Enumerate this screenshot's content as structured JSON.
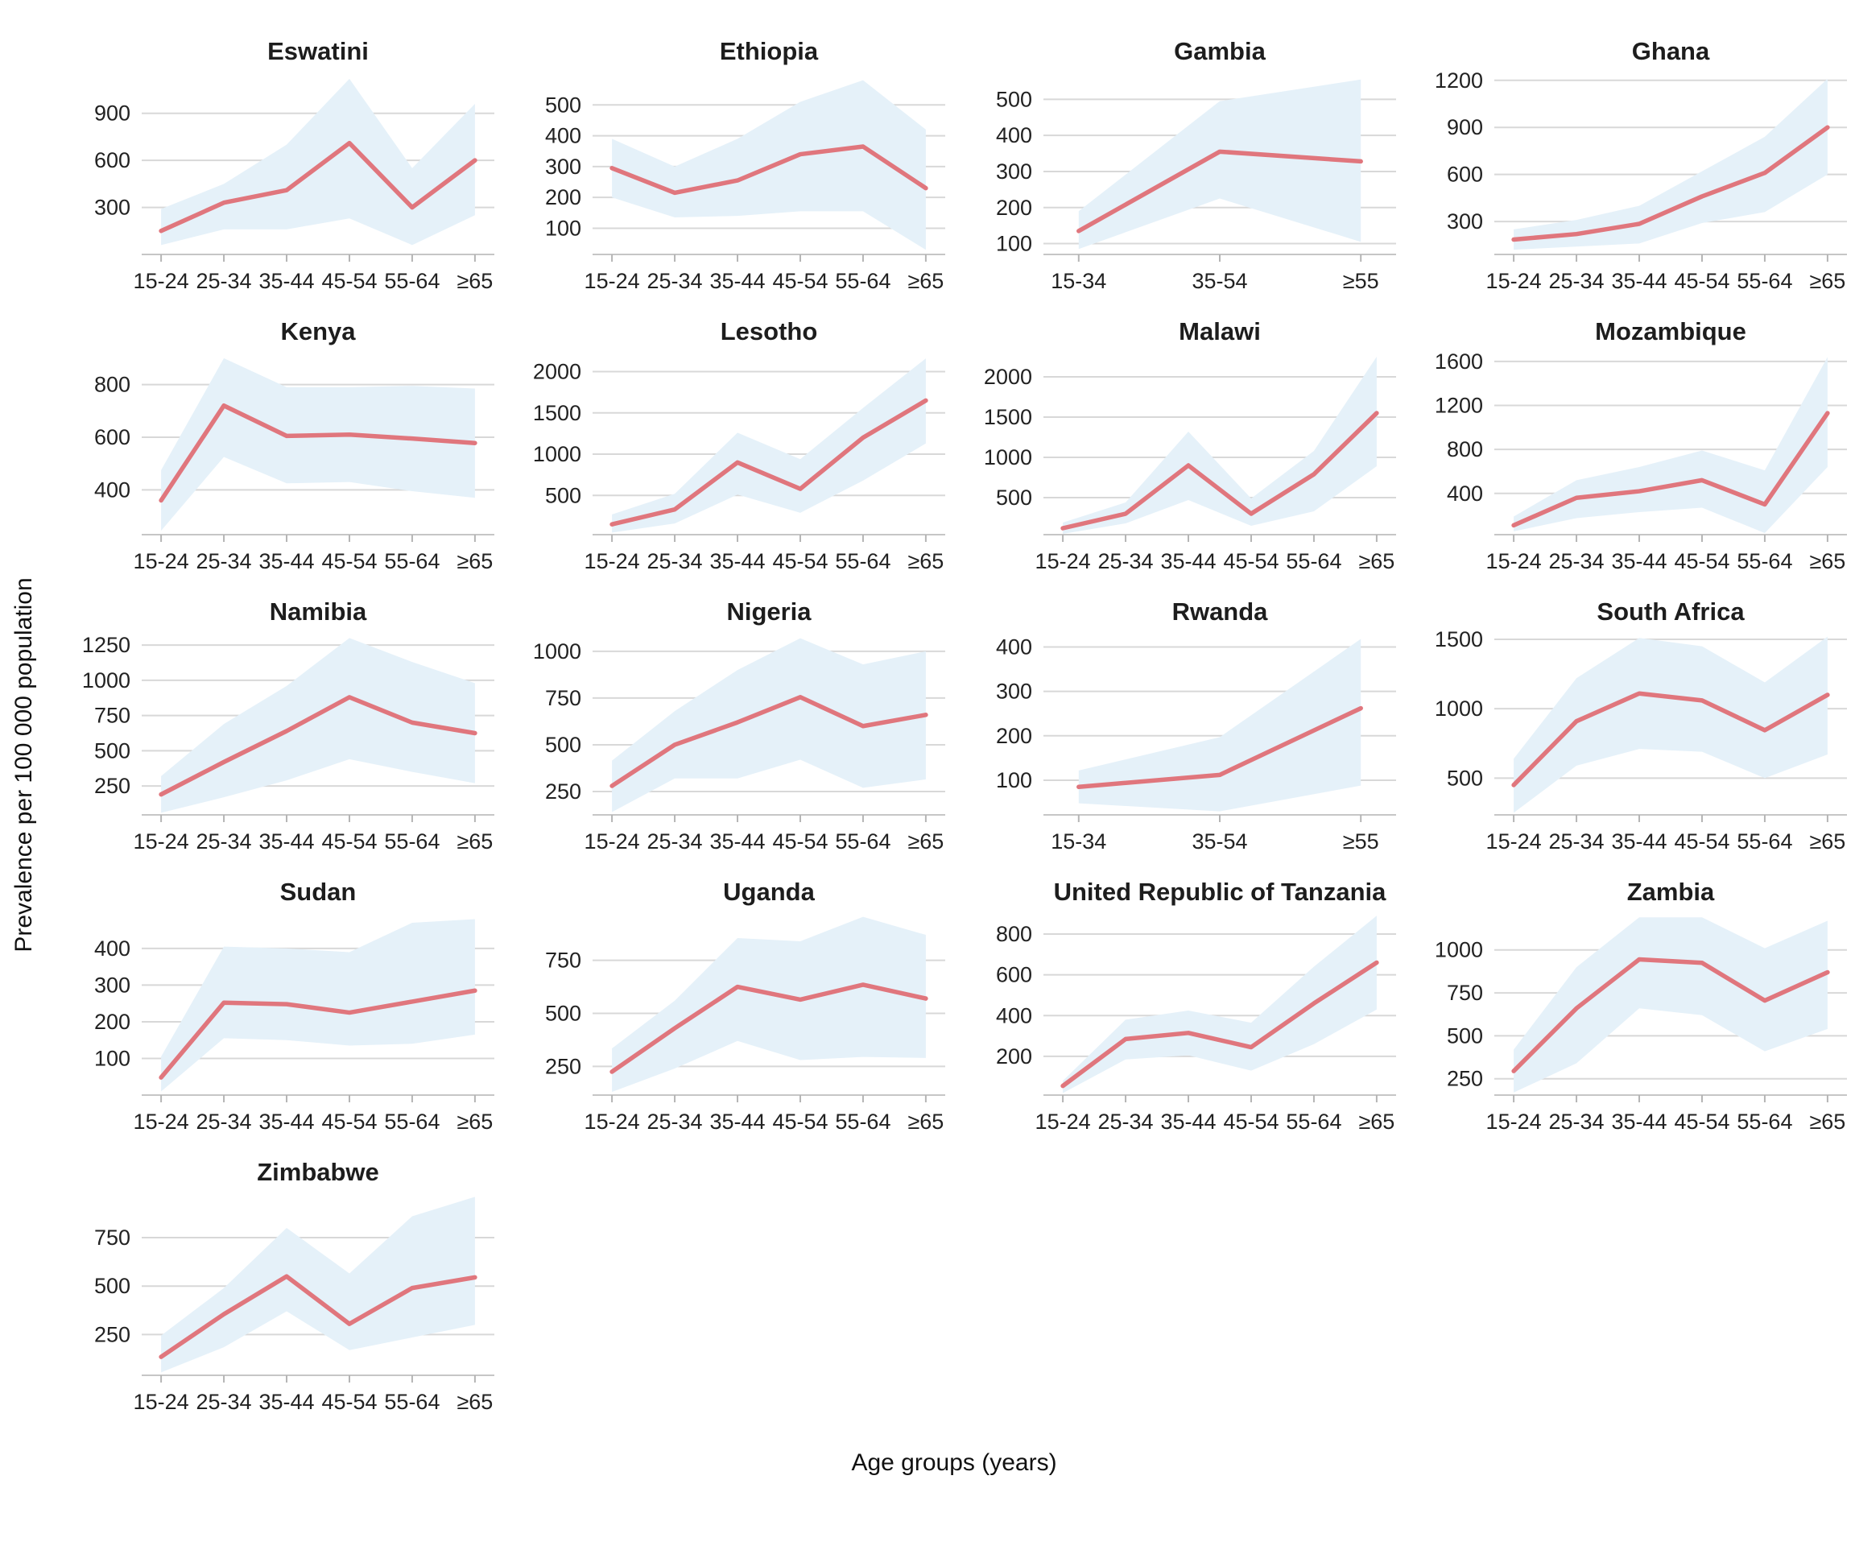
{
  "figure": {
    "ylabel": "Prevalence per 100 000 population",
    "xlabel": "Age groups (years)"
  },
  "style": {
    "line_color": "#e0767d",
    "band_color": "#e5f1f9",
    "grid_color": "#d8d8d8",
    "axis_color": "#c6c6c6",
    "tick_mark_color": "#b5b5b5",
    "text_color": "#222222",
    "title_color": "#1d1d1d"
  },
  "chart_data": [
    {
      "type": "line",
      "title": "Eswatini",
      "categories": [
        "15-24",
        "25-34",
        "35-44",
        "45-54",
        "55-64",
        "≥65"
      ],
      "values": [
        150,
        330,
        410,
        710,
        300,
        600
      ],
      "ci_lower": [
        60,
        160,
        160,
        230,
        60,
        250
      ],
      "ci_upper": [
        290,
        450,
        700,
        1120,
        550,
        960
      ],
      "yticks": [
        300,
        600,
        900
      ],
      "ylim": [
        0,
        1150
      ],
      "xlabel": "Age groups (years)",
      "ylabel": "Prevalence per 100 000 population",
      "grid": true,
      "legend": "none"
    },
    {
      "type": "line",
      "title": "Ethiopia",
      "categories": [
        "15-24",
        "25-34",
        "35-44",
        "45-54",
        "55-64",
        "≥65"
      ],
      "values": [
        295,
        215,
        255,
        340,
        365,
        230
      ],
      "ci_lower": [
        200,
        135,
        140,
        155,
        155,
        30
      ],
      "ci_upper": [
        390,
        300,
        390,
        510,
        580,
        420
      ],
      "yticks": [
        100,
        200,
        300,
        400,
        500
      ],
      "ylim": [
        15,
        600
      ],
      "grid": true,
      "legend": "none"
    },
    {
      "type": "line",
      "title": "Gambia",
      "categories": [
        "15-34",
        "35-54",
        "≥55"
      ],
      "values": [
        135,
        355,
        328
      ],
      "ci_lower": [
        85,
        225,
        105
      ],
      "ci_upper": [
        190,
        495,
        555
      ],
      "yticks": [
        100,
        200,
        300,
        400,
        500
      ],
      "ylim": [
        70,
        570
      ],
      "grid": true,
      "legend": "none"
    },
    {
      "type": "line",
      "title": "Ghana",
      "categories": [
        "15-24",
        "25-34",
        "35-44",
        "45-54",
        "55-64",
        "≥65"
      ],
      "values": [
        185,
        220,
        285,
        460,
        610,
        900
      ],
      "ci_lower": [
        120,
        140,
        160,
        290,
        360,
        600
      ],
      "ci_upper": [
        250,
        310,
        400,
        620,
        840,
        1210
      ],
      "yticks": [
        300,
        600,
        900,
        1200
      ],
      "ylim": [
        90,
        1240
      ],
      "grid": true,
      "legend": "none"
    },
    {
      "type": "line",
      "title": "Kenya",
      "categories": [
        "15-24",
        "25-34",
        "35-44",
        "45-54",
        "55-64",
        "≥65"
      ],
      "values": [
        360,
        720,
        605,
        610,
        595,
        578
      ],
      "ci_lower": [
        245,
        525,
        425,
        430,
        395,
        370
      ],
      "ci_upper": [
        475,
        900,
        790,
        790,
        795,
        785
      ],
      "yticks": [
        400,
        600,
        800
      ],
      "ylim": [
        230,
        915
      ],
      "grid": true,
      "legend": "none"
    },
    {
      "type": "line",
      "title": "Lesotho",
      "categories": [
        "15-24",
        "25-34",
        "35-44",
        "45-54",
        "55-64",
        "≥65"
      ],
      "values": [
        150,
        330,
        900,
        580,
        1200,
        1650
      ],
      "ci_lower": [
        50,
        160,
        510,
        290,
        680,
        1130
      ],
      "ci_upper": [
        270,
        520,
        1260,
        940,
        1560,
        2160
      ],
      "yticks": [
        500,
        1000,
        1500,
        2000
      ],
      "ylim": [
        25,
        2210
      ],
      "grid": true,
      "legend": "none"
    },
    {
      "type": "line",
      "title": "Malawi",
      "categories": [
        "15-24",
        "25-34",
        "35-44",
        "45-54",
        "55-64",
        "≥65"
      ],
      "values": [
        120,
        300,
        900,
        300,
        790,
        1550
      ],
      "ci_lower": [
        50,
        180,
        470,
        150,
        330,
        890
      ],
      "ci_upper": [
        190,
        440,
        1320,
        490,
        1080,
        2250
      ],
      "yticks": [
        500,
        1000,
        1500,
        2000
      ],
      "ylim": [
        40,
        2280
      ],
      "grid": true,
      "legend": "none"
    },
    {
      "type": "line",
      "title": "Mozambique",
      "categories": [
        "15-24",
        "25-34",
        "35-44",
        "45-54",
        "55-64",
        "≥65"
      ],
      "values": [
        110,
        360,
        420,
        520,
        300,
        1130
      ],
      "ci_lower": [
        55,
        175,
        230,
        270,
        40,
        640
      ],
      "ci_upper": [
        190,
        520,
        640,
        790,
        610,
        1640
      ],
      "yticks": [
        400,
        800,
        1200,
        1600
      ],
      "ylim": [
        25,
        1665
      ],
      "grid": true,
      "legend": "none"
    },
    {
      "type": "line",
      "title": "Namibia",
      "categories": [
        "15-24",
        "25-34",
        "35-44",
        "45-54",
        "55-64",
        "≥65"
      ],
      "values": [
        190,
        420,
        640,
        880,
        700,
        625
      ],
      "ci_lower": [
        60,
        170,
        290,
        440,
        350,
        270
      ],
      "ci_upper": [
        320,
        690,
        960,
        1300,
        1130,
        980
      ],
      "yticks": [
        250,
        500,
        750,
        1000,
        1250
      ],
      "ylim": [
        45,
        1325
      ],
      "grid": true,
      "legend": "none"
    },
    {
      "type": "line",
      "title": "Nigeria",
      "categories": [
        "15-24",
        "25-34",
        "35-44",
        "45-54",
        "55-64",
        "≥65"
      ],
      "values": [
        280,
        500,
        620,
        755,
        600,
        660
      ],
      "ci_lower": [
        140,
        320,
        320,
        420,
        270,
        315
      ],
      "ci_upper": [
        415,
        680,
        900,
        1070,
        930,
        1000
      ],
      "yticks": [
        250,
        500,
        750,
        1000
      ],
      "ylim": [
        125,
        1090
      ],
      "grid": true,
      "legend": "none"
    },
    {
      "type": "line",
      "title": "Rwanda",
      "categories": [
        "15-34",
        "35-54",
        "≥55"
      ],
      "values": [
        85,
        112,
        262
      ],
      "ci_lower": [
        48,
        30,
        88
      ],
      "ci_upper": [
        122,
        197,
        418
      ],
      "yticks": [
        100,
        200,
        300,
        400
      ],
      "ylim": [
        22,
        428
      ],
      "grid": true,
      "legend": "none"
    },
    {
      "type": "line",
      "title": "South Africa",
      "categories": [
        "15-24",
        "25-34",
        "35-44",
        "45-54",
        "55-64",
        "≥65"
      ],
      "values": [
        450,
        910,
        1110,
        1060,
        845,
        1100
      ],
      "ci_lower": [
        250,
        590,
        710,
        690,
        500,
        670
      ],
      "ci_upper": [
        640,
        1220,
        1510,
        1450,
        1190,
        1520
      ],
      "yticks": [
        500,
        1000,
        1500
      ],
      "ylim": [
        235,
        1535
      ],
      "grid": true,
      "legend": "none"
    },
    {
      "type": "line",
      "title": "Sudan",
      "categories": [
        "15-24",
        "25-34",
        "35-44",
        "45-54",
        "55-64",
        "≥65"
      ],
      "values": [
        48,
        252,
        248,
        225,
        255,
        285
      ],
      "ci_lower": [
        10,
        155,
        150,
        135,
        140,
        165
      ],
      "ci_upper": [
        105,
        405,
        400,
        390,
        470,
        480
      ],
      "yticks": [
        100,
        200,
        300,
        400
      ],
      "ylim": [
        0,
        492
      ],
      "grid": true,
      "legend": "none"
    },
    {
      "type": "line",
      "title": "Uganda",
      "categories": [
        "15-24",
        "25-34",
        "35-44",
        "45-54",
        "55-64",
        "≥65"
      ],
      "values": [
        225,
        430,
        625,
        565,
        635,
        570
      ],
      "ci_lower": [
        130,
        240,
        370,
        280,
        295,
        290
      ],
      "ci_upper": [
        335,
        560,
        855,
        840,
        955,
        870
      ],
      "yticks": [
        250,
        500,
        750
      ],
      "ylim": [
        115,
        965
      ],
      "grid": true,
      "legend": "none"
    },
    {
      "type": "line",
      "title": "United Republic of Tanzania",
      "categories": [
        "15-24",
        "25-34",
        "35-44",
        "45-54",
        "55-64",
        "≥65"
      ],
      "values": [
        55,
        285,
        315,
        245,
        460,
        660
      ],
      "ci_lower": [
        20,
        185,
        205,
        130,
        260,
        430
      ],
      "ci_upper": [
        80,
        380,
        425,
        365,
        640,
        890
      ],
      "yticks": [
        200,
        400,
        600,
        800
      ],
      "ylim": [
        10,
        895
      ],
      "grid": true,
      "legend": "none"
    },
    {
      "type": "line",
      "title": "Zambia",
      "categories": [
        "15-24",
        "25-34",
        "35-44",
        "45-54",
        "55-64",
        "≥65"
      ],
      "values": [
        295,
        660,
        945,
        925,
        705,
        870
      ],
      "ci_lower": [
        170,
        340,
        660,
        620,
        410,
        540
      ],
      "ci_upper": [
        420,
        900,
        1190,
        1190,
        1010,
        1170
      ],
      "yticks": [
        250,
        500,
        750,
        1000
      ],
      "ylim": [
        155,
        1205
      ],
      "grid": true,
      "legend": "none"
    },
    {
      "type": "line",
      "title": "Zimbabwe",
      "categories": [
        "15-24",
        "25-34",
        "35-44",
        "45-54",
        "55-64",
        "≥65"
      ],
      "values": [
        135,
        355,
        550,
        305,
        490,
        545
      ],
      "ci_lower": [
        55,
        185,
        370,
        170,
        235,
        300
      ],
      "ci_upper": [
        245,
        490,
        800,
        565,
        860,
        960
      ],
      "yticks": [
        250,
        500,
        750
      ],
      "ylim": [
        40,
        970
      ],
      "grid": true,
      "legend": "none"
    }
  ]
}
